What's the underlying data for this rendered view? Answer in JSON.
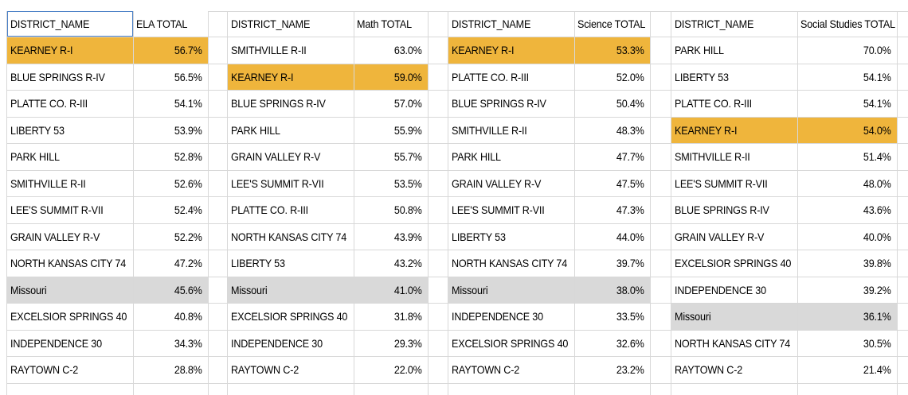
{
  "app": {
    "description_label": "spreadsheet view of district assessment totals",
    "selected_cell_value": "DISTRICT_NAME"
  },
  "colors": {
    "highlight_gold": "#EFB53C",
    "highlight_gray": "#D9D9D9",
    "gridline": "#D8D8D8",
    "selection_border": "#4A80C6",
    "cell_text": "#000000",
    "background": "#FFFFFF"
  },
  "tables": [
    {
      "district_header": "DISTRICT_NAME",
      "value_header": "ELA TOTAL",
      "district_header_selected": true,
      "rows": [
        {
          "district": "KEARNEY R-I",
          "value": "56.7%",
          "highlight": "gold"
        },
        {
          "district": "BLUE SPRINGS R-IV",
          "value": "56.5%",
          "highlight": null
        },
        {
          "district": "PLATTE CO. R-III",
          "value": "54.1%",
          "highlight": null
        },
        {
          "district": "LIBERTY 53",
          "value": "53.9%",
          "highlight": null
        },
        {
          "district": "PARK HILL",
          "value": "52.8%",
          "highlight": null
        },
        {
          "district": "SMITHVILLE R-II",
          "value": "52.6%",
          "highlight": null
        },
        {
          "district": "LEE'S SUMMIT R-VII",
          "value": "52.4%",
          "highlight": null
        },
        {
          "district": "GRAIN VALLEY R-V",
          "value": "52.2%",
          "highlight": null
        },
        {
          "district": "NORTH KANSAS CITY 74",
          "value": "47.2%",
          "highlight": null
        },
        {
          "district": "Missouri",
          "value": "45.6%",
          "highlight": "gray"
        },
        {
          "district": "EXCELSIOR SPRINGS 40",
          "value": "40.8%",
          "highlight": null
        },
        {
          "district": "INDEPENDENCE 30",
          "value": "34.3%",
          "highlight": null
        },
        {
          "district": "RAYTOWN C-2",
          "value": "28.8%",
          "highlight": null
        }
      ]
    },
    {
      "district_header": "DISTRICT_NAME",
      "value_header": "Math TOTAL",
      "district_header_selected": false,
      "rows": [
        {
          "district": "SMITHVILLE R-II",
          "value": "63.0%",
          "highlight": null
        },
        {
          "district": "KEARNEY R-I",
          "value": "59.0%",
          "highlight": "gold"
        },
        {
          "district": "BLUE SPRINGS R-IV",
          "value": "57.0%",
          "highlight": null
        },
        {
          "district": "PARK HILL",
          "value": "55.9%",
          "highlight": null
        },
        {
          "district": "GRAIN VALLEY R-V",
          "value": "55.7%",
          "highlight": null
        },
        {
          "district": "LEE'S SUMMIT R-VII",
          "value": "53.5%",
          "highlight": null
        },
        {
          "district": "PLATTE CO. R-III",
          "value": "50.8%",
          "highlight": null
        },
        {
          "district": "NORTH KANSAS CITY 74",
          "value": "43.9%",
          "highlight": null
        },
        {
          "district": "LIBERTY 53",
          "value": "43.2%",
          "highlight": null
        },
        {
          "district": "Missouri",
          "value": "41.0%",
          "highlight": "gray"
        },
        {
          "district": "EXCELSIOR SPRINGS 40",
          "value": "31.8%",
          "highlight": null
        },
        {
          "district": "INDEPENDENCE 30",
          "value": "29.3%",
          "highlight": null
        },
        {
          "district": "RAYTOWN C-2",
          "value": "22.0%",
          "highlight": null
        }
      ]
    },
    {
      "district_header": "DISTRICT_NAME",
      "value_header": "Science TOTAL",
      "district_header_selected": false,
      "rows": [
        {
          "district": "KEARNEY R-I",
          "value": "53.3%",
          "highlight": "gold"
        },
        {
          "district": "PLATTE CO. R-III",
          "value": "52.0%",
          "highlight": null
        },
        {
          "district": "BLUE SPRINGS R-IV",
          "value": "50.4%",
          "highlight": null
        },
        {
          "district": "SMITHVILLE R-II",
          "value": "48.3%",
          "highlight": null
        },
        {
          "district": "PARK HILL",
          "value": "47.7%",
          "highlight": null
        },
        {
          "district": "GRAIN VALLEY R-V",
          "value": "47.5%",
          "highlight": null
        },
        {
          "district": "LEE'S SUMMIT R-VII",
          "value": "47.3%",
          "highlight": null
        },
        {
          "district": "LIBERTY 53",
          "value": "44.0%",
          "highlight": null
        },
        {
          "district": "NORTH KANSAS CITY 74",
          "value": "39.7%",
          "highlight": null
        },
        {
          "district": "Missouri",
          "value": "38.0%",
          "highlight": "gray"
        },
        {
          "district": "INDEPENDENCE 30",
          "value": "33.5%",
          "highlight": null
        },
        {
          "district": "EXCELSIOR SPRINGS 40",
          "value": "32.6%",
          "highlight": null
        },
        {
          "district": "RAYTOWN C-2",
          "value": "23.2%",
          "highlight": null
        }
      ]
    },
    {
      "district_header": "DISTRICT_NAME",
      "value_header": "Social Studies TOTAL",
      "district_header_selected": false,
      "rows": [
        {
          "district": "PARK HILL",
          "value": "70.0%",
          "highlight": null
        },
        {
          "district": "LIBERTY 53",
          "value": "54.1%",
          "highlight": null
        },
        {
          "district": "PLATTE CO. R-III",
          "value": "54.1%",
          "highlight": null
        },
        {
          "district": "KEARNEY R-I",
          "value": "54.0%",
          "highlight": "gold"
        },
        {
          "district": "SMITHVILLE R-II",
          "value": "51.4%",
          "highlight": null
        },
        {
          "district": "LEE'S SUMMIT R-VII",
          "value": "48.0%",
          "highlight": null
        },
        {
          "district": "BLUE SPRINGS R-IV",
          "value": "43.6%",
          "highlight": null
        },
        {
          "district": "GRAIN VALLEY R-V",
          "value": "40.0%",
          "highlight": null
        },
        {
          "district": "EXCELSIOR SPRINGS 40",
          "value": "39.8%",
          "highlight": null
        },
        {
          "district": "INDEPENDENCE 30",
          "value": "39.2%",
          "highlight": null
        },
        {
          "district": "Missouri",
          "value": "36.1%",
          "highlight": "gray"
        },
        {
          "district": "NORTH KANSAS CITY 74",
          "value": "30.5%",
          "highlight": null
        },
        {
          "district": "RAYTOWN C-2",
          "value": "21.4%",
          "highlight": null
        }
      ]
    }
  ]
}
